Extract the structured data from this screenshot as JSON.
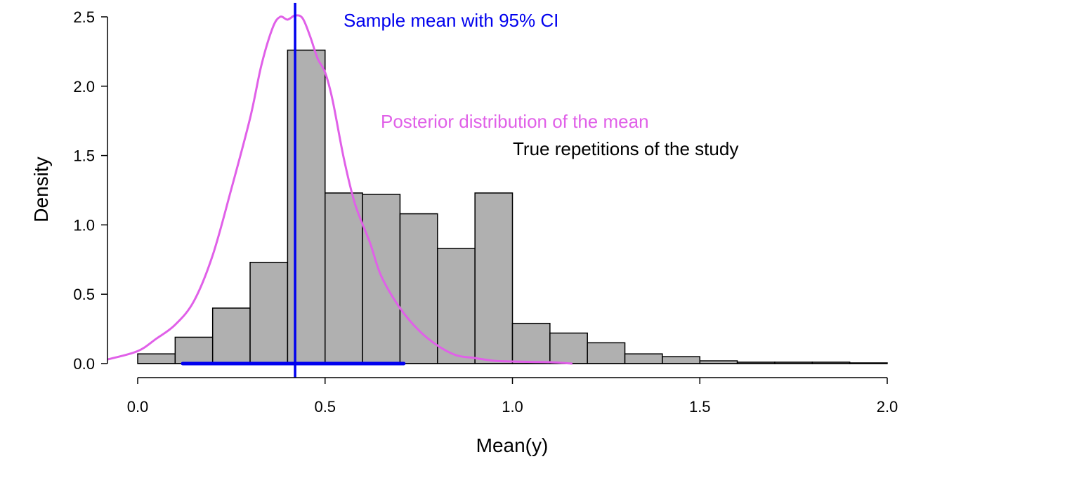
{
  "chart_data": {
    "type": "bar",
    "title": "",
    "xlabel": "Mean(y)",
    "ylabel": "Density",
    "xlim": [
      0.0,
      2.0
    ],
    "ylim": [
      0.0,
      2.5
    ],
    "grid": false,
    "x_ticks": [
      "0.0",
      "0.5",
      "1.0",
      "1.5",
      "2.0"
    ],
    "y_ticks": [
      "0.0",
      "0.5",
      "1.0",
      "1.5",
      "2.0",
      "2.5"
    ],
    "histogram": {
      "name": "True repetitions of the study",
      "bin_width": 0.1,
      "bin_starts": [
        0.0,
        0.1,
        0.2,
        0.3,
        0.4,
        0.5,
        0.6,
        0.7,
        0.8,
        0.9,
        1.0,
        1.1,
        1.2,
        1.3,
        1.4,
        1.5,
        1.6,
        1.7,
        1.8,
        1.9
      ],
      "values": [
        0.07,
        0.19,
        0.4,
        0.73,
        2.26,
        1.23,
        1.22,
        1.08,
        0.83,
        1.23,
        0.29,
        0.22,
        0.15,
        0.07,
        0.05,
        0.02,
        0.01,
        0.01,
        0.01,
        0.005
      ],
      "fill": "#b0b0b0",
      "stroke": "#000000"
    },
    "density_curve": {
      "name": "Posterior distribution of the mean",
      "color": "#e060e8",
      "x": [
        -0.08,
        0.0,
        0.05,
        0.1,
        0.15,
        0.2,
        0.25,
        0.3,
        0.33,
        0.36,
        0.38,
        0.4,
        0.42,
        0.44,
        0.46,
        0.48,
        0.5,
        0.52,
        0.55,
        0.58,
        0.62,
        0.65,
        0.7,
        0.75,
        0.8,
        0.85,
        0.9,
        0.95,
        1.0,
        1.05,
        1.1,
        1.16
      ],
      "y": [
        0.03,
        0.09,
        0.18,
        0.28,
        0.45,
        0.78,
        1.26,
        1.77,
        2.15,
        2.42,
        2.5,
        2.48,
        2.51,
        2.49,
        2.36,
        2.2,
        2.1,
        1.9,
        1.48,
        1.15,
        0.87,
        0.63,
        0.4,
        0.24,
        0.13,
        0.06,
        0.04,
        0.02,
        0.015,
        0.012,
        0.01,
        0.0
      ]
    },
    "sample_mean": {
      "name": "Sample mean with 95% CI",
      "color": "#0000ee",
      "mean": 0.42,
      "ci": [
        0.12,
        0.71
      ]
    },
    "annotations": [
      {
        "text": "Sample mean with 95% CI",
        "color": "#0000ee"
      },
      {
        "text": "Posterior distribution of the mean",
        "color": "#e060e8"
      },
      {
        "text": "True repetitions of the study",
        "color": "#000000"
      }
    ]
  }
}
